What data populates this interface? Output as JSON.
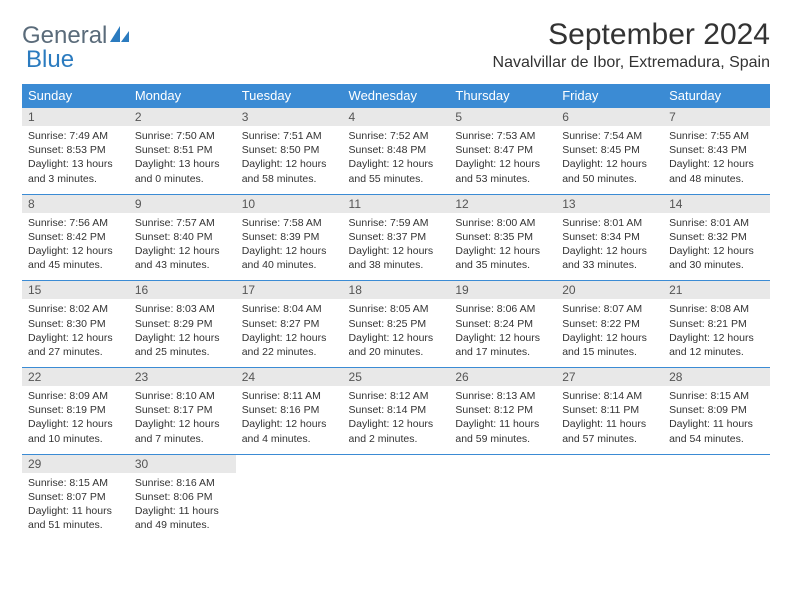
{
  "logo": {
    "text1": "General",
    "text2": "Blue"
  },
  "title": "September 2024",
  "location": "Navalvillar de Ibor, Extremadura, Spain",
  "colors": {
    "header_bg": "#3b8bd4",
    "header_text": "#ffffff",
    "daynum_bg": "#e8e8e8",
    "border": "#3b8bd4",
    "logo_gray": "#5a6b7a",
    "logo_blue": "#2b7bbf"
  },
  "day_names": [
    "Sunday",
    "Monday",
    "Tuesday",
    "Wednesday",
    "Thursday",
    "Friday",
    "Saturday"
  ],
  "weeks": [
    [
      {
        "n": "1",
        "sr": "7:49 AM",
        "ss": "8:53 PM",
        "dl": "13 hours and 3 minutes."
      },
      {
        "n": "2",
        "sr": "7:50 AM",
        "ss": "8:51 PM",
        "dl": "13 hours and 0 minutes."
      },
      {
        "n": "3",
        "sr": "7:51 AM",
        "ss": "8:50 PM",
        "dl": "12 hours and 58 minutes."
      },
      {
        "n": "4",
        "sr": "7:52 AM",
        "ss": "8:48 PM",
        "dl": "12 hours and 55 minutes."
      },
      {
        "n": "5",
        "sr": "7:53 AM",
        "ss": "8:47 PM",
        "dl": "12 hours and 53 minutes."
      },
      {
        "n": "6",
        "sr": "7:54 AM",
        "ss": "8:45 PM",
        "dl": "12 hours and 50 minutes."
      },
      {
        "n": "7",
        "sr": "7:55 AM",
        "ss": "8:43 PM",
        "dl": "12 hours and 48 minutes."
      }
    ],
    [
      {
        "n": "8",
        "sr": "7:56 AM",
        "ss": "8:42 PM",
        "dl": "12 hours and 45 minutes."
      },
      {
        "n": "9",
        "sr": "7:57 AM",
        "ss": "8:40 PM",
        "dl": "12 hours and 43 minutes."
      },
      {
        "n": "10",
        "sr": "7:58 AM",
        "ss": "8:39 PM",
        "dl": "12 hours and 40 minutes."
      },
      {
        "n": "11",
        "sr": "7:59 AM",
        "ss": "8:37 PM",
        "dl": "12 hours and 38 minutes."
      },
      {
        "n": "12",
        "sr": "8:00 AM",
        "ss": "8:35 PM",
        "dl": "12 hours and 35 minutes."
      },
      {
        "n": "13",
        "sr": "8:01 AM",
        "ss": "8:34 PM",
        "dl": "12 hours and 33 minutes."
      },
      {
        "n": "14",
        "sr": "8:01 AM",
        "ss": "8:32 PM",
        "dl": "12 hours and 30 minutes."
      }
    ],
    [
      {
        "n": "15",
        "sr": "8:02 AM",
        "ss": "8:30 PM",
        "dl": "12 hours and 27 minutes."
      },
      {
        "n": "16",
        "sr": "8:03 AM",
        "ss": "8:29 PM",
        "dl": "12 hours and 25 minutes."
      },
      {
        "n": "17",
        "sr": "8:04 AM",
        "ss": "8:27 PM",
        "dl": "12 hours and 22 minutes."
      },
      {
        "n": "18",
        "sr": "8:05 AM",
        "ss": "8:25 PM",
        "dl": "12 hours and 20 minutes."
      },
      {
        "n": "19",
        "sr": "8:06 AM",
        "ss": "8:24 PM",
        "dl": "12 hours and 17 minutes."
      },
      {
        "n": "20",
        "sr": "8:07 AM",
        "ss": "8:22 PM",
        "dl": "12 hours and 15 minutes."
      },
      {
        "n": "21",
        "sr": "8:08 AM",
        "ss": "8:21 PM",
        "dl": "12 hours and 12 minutes."
      }
    ],
    [
      {
        "n": "22",
        "sr": "8:09 AM",
        "ss": "8:19 PM",
        "dl": "12 hours and 10 minutes."
      },
      {
        "n": "23",
        "sr": "8:10 AM",
        "ss": "8:17 PM",
        "dl": "12 hours and 7 minutes."
      },
      {
        "n": "24",
        "sr": "8:11 AM",
        "ss": "8:16 PM",
        "dl": "12 hours and 4 minutes."
      },
      {
        "n": "25",
        "sr": "8:12 AM",
        "ss": "8:14 PM",
        "dl": "12 hours and 2 minutes."
      },
      {
        "n": "26",
        "sr": "8:13 AM",
        "ss": "8:12 PM",
        "dl": "11 hours and 59 minutes."
      },
      {
        "n": "27",
        "sr": "8:14 AM",
        "ss": "8:11 PM",
        "dl": "11 hours and 57 minutes."
      },
      {
        "n": "28",
        "sr": "8:15 AM",
        "ss": "8:09 PM",
        "dl": "11 hours and 54 minutes."
      }
    ],
    [
      {
        "n": "29",
        "sr": "8:15 AM",
        "ss": "8:07 PM",
        "dl": "11 hours and 51 minutes."
      },
      {
        "n": "30",
        "sr": "8:16 AM",
        "ss": "8:06 PM",
        "dl": "11 hours and 49 minutes."
      },
      {
        "empty": true
      },
      {
        "empty": true
      },
      {
        "empty": true
      },
      {
        "empty": true
      },
      {
        "empty": true
      }
    ]
  ],
  "labels": {
    "sunrise": "Sunrise:",
    "sunset": "Sunset:",
    "daylight": "Daylight:"
  }
}
